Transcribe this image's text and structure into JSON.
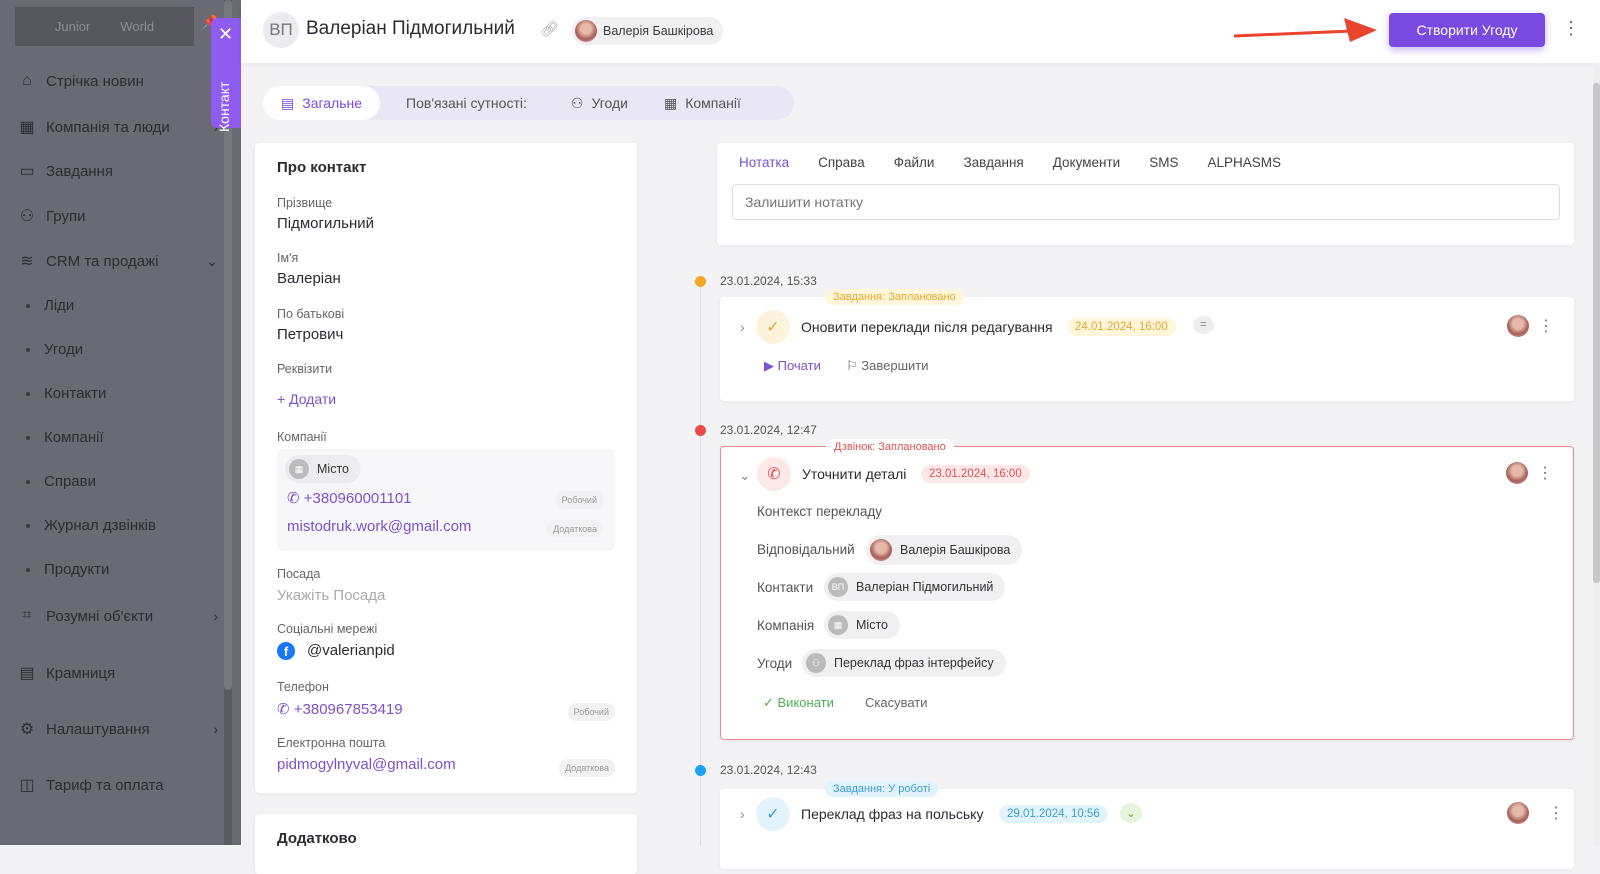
{
  "sidebar": {
    "logo": {
      "left": "Junior",
      "right": "World"
    },
    "items": [
      {
        "label": "Стрічка новин",
        "icon": "home-icon"
      },
      {
        "label": "Компанія та люди",
        "icon": "building-icon"
      },
      {
        "label": "Завдання",
        "icon": "calendar-icon"
      },
      {
        "label": "Групи",
        "icon": "users-icon"
      },
      {
        "label": "CRM та продажі",
        "icon": "database-icon"
      },
      {
        "label": "Розумні об'єкти",
        "icon": "scan-icon"
      },
      {
        "label": "Крамниця",
        "icon": "store-icon"
      },
      {
        "label": "Налаштування",
        "icon": "gear-icon"
      },
      {
        "label": "Тариф та оплата",
        "icon": "wallet-icon"
      }
    ],
    "subitems": [
      "Ліди",
      "Угоди",
      "Контакти",
      "Компанії",
      "Справи",
      "Журнал дзвінків",
      "Продукти"
    ]
  },
  "contact_tab": {
    "label": "Контакт",
    "close": "✕"
  },
  "header": {
    "initials": "ВП",
    "name": "Валеріан Підмогильний",
    "owner": "Валерія Башкірова",
    "create_button": "Створити Угоду",
    "more": "⋮"
  },
  "tabs": {
    "general": "Загальне",
    "related": "Пов'язані сутності:",
    "deals": "Угоди",
    "companies": "Компанії"
  },
  "about": {
    "title": "Про контакт",
    "surname_label": "Прізвище",
    "surname": "Підмогильний",
    "name_label": "Ім'я",
    "name": "Валеріан",
    "patronymic_label": "По батькові",
    "patronymic": "Петрович",
    "requisites_label": "Реквізити",
    "add": "+ Додати",
    "companies_label": "Компанії",
    "company": {
      "name": "Місто",
      "phone": "+380960001101",
      "phone_tag": "Робочий",
      "email": "mistodruk.work@gmail.com",
      "email_tag": "Додаткова"
    },
    "position_label": "Посада",
    "position_placeholder": "Укажіть Посада",
    "social_label": "Соціальні мережі",
    "facebook": "@valerianpid",
    "phone_label": "Телефон",
    "phone": "+380967853419",
    "phone_tag": "Робочий",
    "email_label": "Електронна пошта",
    "email": "pidmogylnyval@gmail.com",
    "email_tag": "Додаткова"
  },
  "extra": {
    "title": "Додатково"
  },
  "note": {
    "tabs": [
      "Нотатка",
      "Справа",
      "Файли",
      "Завдання",
      "Документи",
      "SMS",
      "ALPHASMS"
    ],
    "placeholder": "Залишити нотатку"
  },
  "timeline": [
    {
      "date": "23.01.2024, 15:33",
      "status": "Завдання: Заплановано",
      "title": "Оновити переклади після редагування",
      "due": "24.01.2024, 16:00",
      "priority": "=",
      "start": "Почати",
      "finish": "Завершити",
      "color": "#f5a623"
    },
    {
      "date": "23.01.2024, 12:47",
      "status": "Дзвінок: Заплановано",
      "title": "Уточнити деталі",
      "due": "23.01.2024, 16:00",
      "context": "Контекст перекладу",
      "responsible_label": "Відповідальний",
      "responsible": "Валерія Башкірова",
      "contacts_label": "Контакти",
      "contact": "Валеріан Підмогильний",
      "contact_initials": "ВП",
      "company_label": "Компанія",
      "company": "Місто",
      "deals_label": "Угоди",
      "deal": "Переклад фраз інтерфейсу",
      "done": "Виконати",
      "cancel": "Скасувати",
      "color": "#f04848"
    },
    {
      "date": "23.01.2024, 12:43",
      "status": "Завдання: У роботі",
      "title": "Переклад фраз на польську",
      "due": "29.01.2024, 10:56",
      "color": "#1da1f2"
    }
  ],
  "colors": {
    "accent": "#7a4ae0",
    "arrow": "#e8442e"
  }
}
